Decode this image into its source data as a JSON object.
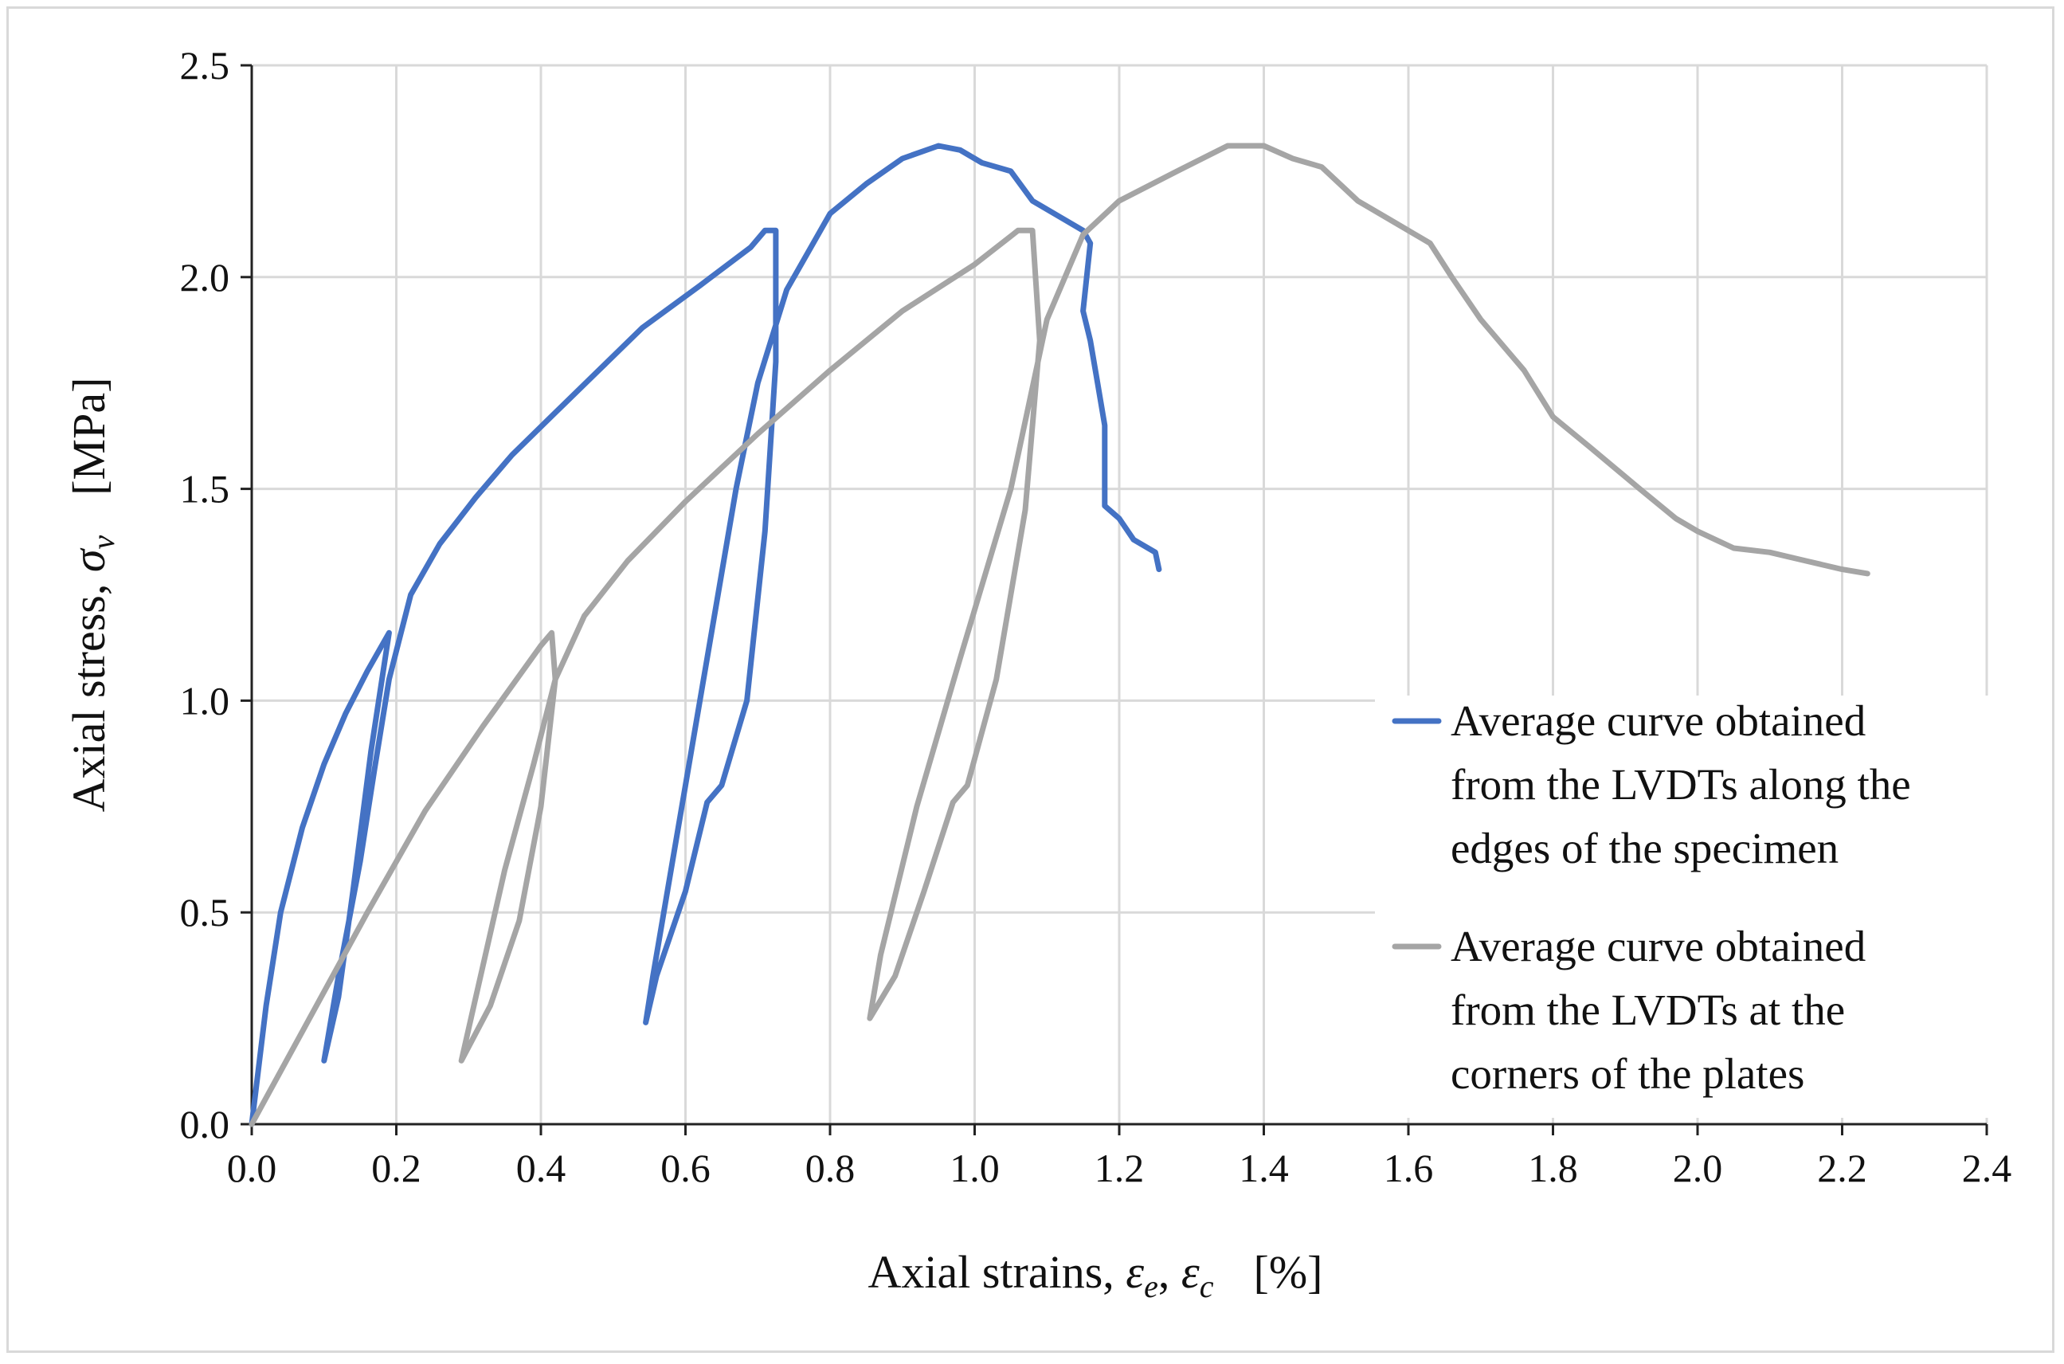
{
  "chart_data": {
    "type": "line",
    "title": "",
    "xlabel": {
      "prefix": "Axial strains, ",
      "sym1": "ε",
      "sub1": "e",
      "sep": ", ",
      "sym2": "ε",
      "sub2": "c",
      "unit": "[%]"
    },
    "ylabel": {
      "prefix": "Axial stress, ",
      "sym": "σ",
      "sub": "v",
      "unit": "[MPa]"
    },
    "xlim": [
      0.0,
      2.4
    ],
    "ylim": [
      0.0,
      2.5
    ],
    "x_ticks": [
      "0.0",
      "0.2",
      "0.4",
      "0.6",
      "0.8",
      "1.0",
      "1.2",
      "1.4",
      "1.6",
      "1.8",
      "2.0",
      "2.2",
      "2.4"
    ],
    "y_ticks": [
      "0.0",
      "0.5",
      "1.0",
      "1.5",
      "2.0",
      "2.5"
    ],
    "grid": true,
    "legend_position": "right",
    "series": [
      {
        "name": "Average curve obtained from the LVDTs along the edges of the specimen",
        "legend_lines": [
          "Average curve obtained",
          "from the LVDTs along the",
          "edges of the specimen"
        ],
        "color": "#4472c4",
        "points": [
          [
            0.0,
            0.0
          ],
          [
            0.02,
            0.28
          ],
          [
            0.04,
            0.5
          ],
          [
            0.07,
            0.7
          ],
          [
            0.1,
            0.85
          ],
          [
            0.13,
            0.97
          ],
          [
            0.16,
            1.07
          ],
          [
            0.19,
            1.16
          ],
          [
            0.165,
            0.88
          ],
          [
            0.14,
            0.55
          ],
          [
            0.12,
            0.3
          ],
          [
            0.1,
            0.15
          ],
          [
            0.12,
            0.35
          ],
          [
            0.15,
            0.62
          ],
          [
            0.17,
            0.84
          ],
          [
            0.19,
            1.05
          ],
          [
            0.22,
            1.25
          ],
          [
            0.26,
            1.37
          ],
          [
            0.31,
            1.48
          ],
          [
            0.36,
            1.58
          ],
          [
            0.42,
            1.68
          ],
          [
            0.48,
            1.78
          ],
          [
            0.54,
            1.88
          ],
          [
            0.62,
            1.98
          ],
          [
            0.69,
            2.07
          ],
          [
            0.71,
            2.11
          ],
          [
            0.725,
            2.11
          ],
          [
            0.725,
            1.8
          ],
          [
            0.71,
            1.4
          ],
          [
            0.685,
            1.0
          ],
          [
            0.65,
            0.8
          ],
          [
            0.63,
            0.76
          ],
          [
            0.6,
            0.55
          ],
          [
            0.56,
            0.35
          ],
          [
            0.545,
            0.24
          ],
          [
            0.555,
            0.35
          ],
          [
            0.59,
            0.7
          ],
          [
            0.63,
            1.1
          ],
          [
            0.67,
            1.5
          ],
          [
            0.7,
            1.75
          ],
          [
            0.74,
            1.97
          ],
          [
            0.8,
            2.15
          ],
          [
            0.85,
            2.22
          ],
          [
            0.9,
            2.28
          ],
          [
            0.95,
            2.31
          ],
          [
            0.98,
            2.3
          ],
          [
            1.01,
            2.27
          ],
          [
            1.05,
            2.25
          ],
          [
            1.08,
            2.18
          ],
          [
            1.12,
            2.14
          ],
          [
            1.15,
            2.11
          ],
          [
            1.16,
            2.08
          ],
          [
            1.15,
            1.92
          ],
          [
            1.16,
            1.85
          ],
          [
            1.17,
            1.75
          ],
          [
            1.18,
            1.65
          ],
          [
            1.18,
            1.46
          ],
          [
            1.2,
            1.43
          ],
          [
            1.22,
            1.38
          ],
          [
            1.25,
            1.35
          ],
          [
            1.255,
            1.31
          ]
        ]
      },
      {
        "name": "Average curve obtained from the LVDTs at the corners of the plates",
        "legend_lines": [
          "Average curve obtained",
          "from the LVDTs at the",
          "corners of the plates"
        ],
        "color": "#a5a5a5",
        "points": [
          [
            0.0,
            0.0
          ],
          [
            0.08,
            0.25
          ],
          [
            0.16,
            0.5
          ],
          [
            0.24,
            0.74
          ],
          [
            0.32,
            0.94
          ],
          [
            0.4,
            1.13
          ],
          [
            0.415,
            1.16
          ],
          [
            0.42,
            1.05
          ],
          [
            0.4,
            0.75
          ],
          [
            0.37,
            0.48
          ],
          [
            0.33,
            0.28
          ],
          [
            0.29,
            0.15
          ],
          [
            0.31,
            0.3
          ],
          [
            0.35,
            0.6
          ],
          [
            0.39,
            0.85
          ],
          [
            0.42,
            1.05
          ],
          [
            0.46,
            1.2
          ],
          [
            0.52,
            1.33
          ],
          [
            0.6,
            1.47
          ],
          [
            0.7,
            1.63
          ],
          [
            0.8,
            1.78
          ],
          [
            0.9,
            1.92
          ],
          [
            1.0,
            2.03
          ],
          [
            1.06,
            2.11
          ],
          [
            1.08,
            2.11
          ],
          [
            1.09,
            1.85
          ],
          [
            1.07,
            1.45
          ],
          [
            1.03,
            1.05
          ],
          [
            0.99,
            0.8
          ],
          [
            0.97,
            0.76
          ],
          [
            0.93,
            0.55
          ],
          [
            0.89,
            0.35
          ],
          [
            0.855,
            0.25
          ],
          [
            0.87,
            0.4
          ],
          [
            0.92,
            0.75
          ],
          [
            0.98,
            1.1
          ],
          [
            1.05,
            1.5
          ],
          [
            1.1,
            1.9
          ],
          [
            1.15,
            2.1
          ],
          [
            1.2,
            2.18
          ],
          [
            1.28,
            2.25
          ],
          [
            1.35,
            2.31
          ],
          [
            1.4,
            2.31
          ],
          [
            1.44,
            2.28
          ],
          [
            1.48,
            2.26
          ],
          [
            1.53,
            2.18
          ],
          [
            1.58,
            2.13
          ],
          [
            1.63,
            2.08
          ],
          [
            1.66,
            2.0
          ],
          [
            1.7,
            1.9
          ],
          [
            1.76,
            1.78
          ],
          [
            1.8,
            1.67
          ],
          [
            1.85,
            1.6
          ],
          [
            1.92,
            1.5
          ],
          [
            1.97,
            1.43
          ],
          [
            2.0,
            1.4
          ],
          [
            2.05,
            1.36
          ],
          [
            2.1,
            1.35
          ],
          [
            2.15,
            1.33
          ],
          [
            2.2,
            1.31
          ],
          [
            2.235,
            1.3
          ]
        ]
      }
    ]
  }
}
